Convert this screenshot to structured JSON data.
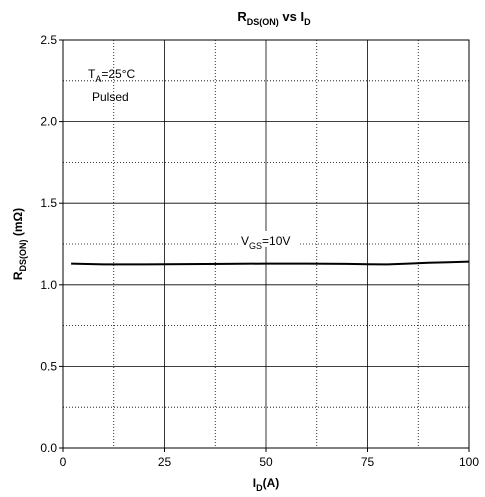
{
  "chart_data": {
    "type": "line",
    "title": {
      "main": "R",
      "sub": "DS(ON)",
      "mid": " vs I",
      "sub2": "D"
    },
    "xlabel": {
      "main": "I",
      "sub": "D",
      "rest": "(A)"
    },
    "ylabel": {
      "main": "R",
      "sub": "DS(ON)",
      "rest": " (mΩ)"
    },
    "xlim": [
      0,
      100
    ],
    "ylim": [
      0,
      2.5
    ],
    "x_ticks": [
      "0",
      "25",
      "50",
      "75",
      "100"
    ],
    "y_ticks": [
      "0.0",
      "0.5",
      "1.0",
      "1.5",
      "2.0",
      "2.5"
    ],
    "grid": true,
    "annotations": {
      "conditions_line1": {
        "main": "T",
        "sub": "A",
        "rest": "=25°C"
      },
      "conditions_line2": "Pulsed"
    },
    "series": [
      {
        "name": {
          "main": "V",
          "sub": "GS",
          "rest": "=10V"
        },
        "color": "#000000",
        "x": [
          2,
          10,
          20,
          30,
          40,
          50,
          60,
          70,
          75,
          80,
          85,
          90,
          95,
          100
        ],
        "y": [
          1.13,
          1.125,
          1.125,
          1.127,
          1.128,
          1.13,
          1.13,
          1.128,
          1.126,
          1.125,
          1.13,
          1.135,
          1.138,
          1.142
        ]
      }
    ]
  }
}
